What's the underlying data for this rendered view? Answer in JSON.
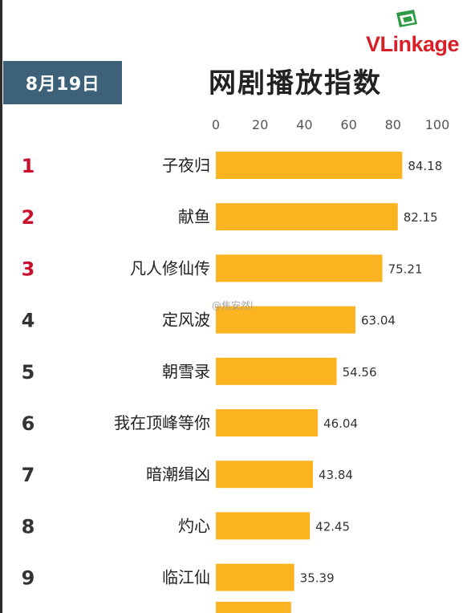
{
  "date": "8月19日",
  "brand": "VLinkage",
  "watermark": "@焦安然l",
  "colors": {
    "bar": "#fbb320",
    "rank_top": "#c8102e",
    "rank_other": "#333333",
    "date_badge": "#3d6178",
    "brand": "#d61f26"
  },
  "chart_data": {
    "type": "bar",
    "orientation": "horizontal",
    "title": "网剧播放指数",
    "categories": [
      "子夜归",
      "献鱼",
      "凡人修仙传",
      "定风波",
      "朝雪录",
      "我在顶峰等你",
      "暗潮缉凶",
      "灼心",
      "临江仙"
    ],
    "ranks": [
      "1",
      "2",
      "3",
      "4",
      "5",
      "6",
      "7",
      "8",
      "9"
    ],
    "values": [
      84.18,
      82.15,
      75.21,
      63.04,
      54.56,
      46.04,
      43.84,
      42.45,
      35.39
    ],
    "value_labels": [
      "84.18",
      "82.15",
      "75.21",
      "63.04",
      "54.56",
      "46.04",
      "43.84",
      "42.45",
      "35.39"
    ],
    "xlim": [
      0,
      100
    ],
    "xticks": [
      "0",
      "20",
      "40",
      "60",
      "80",
      "100"
    ],
    "xtick_values": [
      0,
      20,
      40,
      60,
      80,
      100
    ],
    "grid": false,
    "legend": "none"
  }
}
